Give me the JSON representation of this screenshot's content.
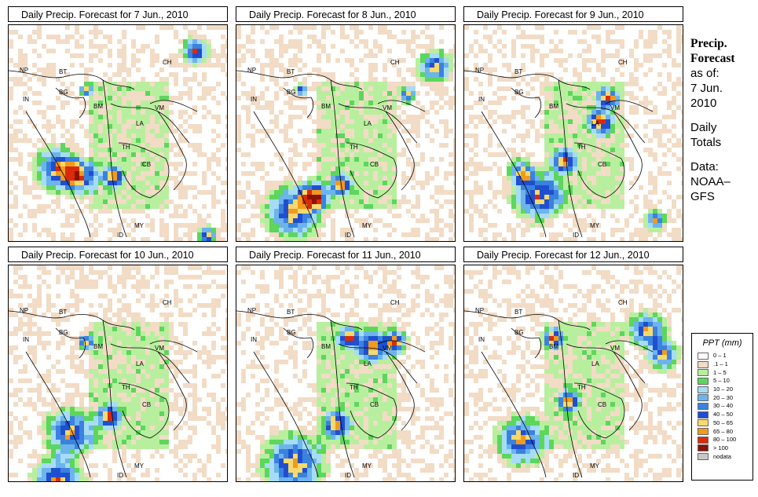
{
  "panels": [
    {
      "title": "Daily Precip. Forecast for  7 Jun., 2010"
    },
    {
      "title": "Daily Precip. Forecast for  8 Jun., 2010"
    },
    {
      "title": "Daily Precip. Forecast for  9 Jun., 2010"
    },
    {
      "title": "Daily Precip. Forecast for  10 Jun., 2010"
    },
    {
      "title": "Daily Precip. Forecast for  11 Jun., 2010"
    },
    {
      "title": "Daily Precip. Forecast for  12 Jun., 2010"
    }
  ],
  "map_labels": {
    "np": "NP",
    "bt": "BT",
    "bg": "BG",
    "in": "IN",
    "bm": "BM",
    "ch": "CH",
    "vm": "VM",
    "la": "LA",
    "th": "TH",
    "cb": "CB",
    "my": "MY",
    "id": "ID"
  },
  "side": {
    "title_line1": "Precip.",
    "title_line2": "Forecast",
    "as_of": "as of:",
    "date_line1": "7 Jun.",
    "date_line2": "2010",
    "daily_line1": "Daily",
    "daily_line2": "Totals",
    "data_line1": "Data:",
    "data_line2": "NOAA–",
    "data_line3": "GFS"
  },
  "legend": {
    "title": "PPT (mm)",
    "items": [
      {
        "label": "0 – 1",
        "color": "#ffffff"
      },
      {
        "label": ".1 – 1",
        "color": "#f2dcc6"
      },
      {
        "label": "1 – 5",
        "color": "#b8ef9e"
      },
      {
        "label": "5 – 10",
        "color": "#5cd65c"
      },
      {
        "label": "10 – 20",
        "color": "#a6dcf5"
      },
      {
        "label": "20 – 30",
        "color": "#6cb4ec"
      },
      {
        "label": "30 – 40",
        "color": "#3b82df"
      },
      {
        "label": "40 – 50",
        "color": "#1f4fd0"
      },
      {
        "label": "50 – 65",
        "color": "#f7d96b"
      },
      {
        "label": "65 – 80",
        "color": "#f29a1c"
      },
      {
        "label": "80 – 100",
        "color": "#d92b0c"
      },
      {
        "label": "> 100",
        "color": "#8c1206"
      },
      {
        "label": "nodata",
        "color": "#c8c8c8"
      }
    ]
  }
}
